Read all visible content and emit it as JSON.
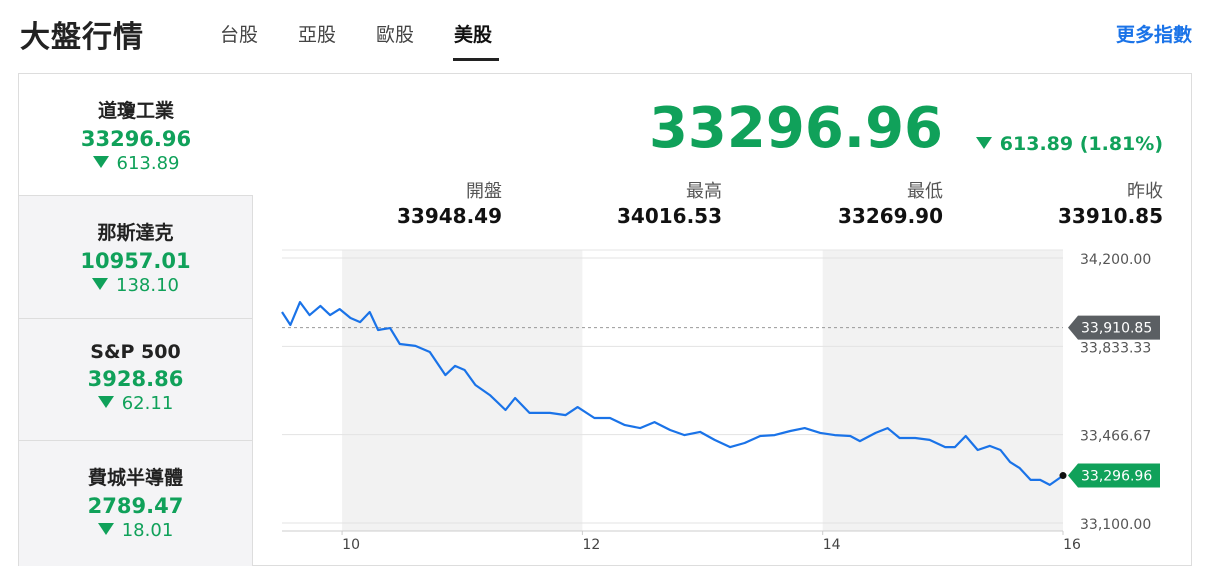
{
  "header": {
    "title": "大盤行情",
    "tabs": [
      "台股",
      "亞股",
      "歐股",
      "美股"
    ],
    "active_tab": 3,
    "more": "更多指數"
  },
  "sidebar": [
    {
      "name": "道瓊工業",
      "price": "33296.96",
      "change": "613.89"
    },
    {
      "name": "那斯達克",
      "price": "10957.01",
      "change": "138.10"
    },
    {
      "name": "S&P 500",
      "price": "3928.86",
      "change": "62.11"
    },
    {
      "name": "費城半導體",
      "price": "2789.47",
      "change": "18.01"
    }
  ],
  "quote": {
    "price": "33296.96",
    "change": "613.89 (1.81%)",
    "stats": [
      {
        "label": "開盤",
        "value": "33948.49"
      },
      {
        "label": "最高",
        "value": "34016.53"
      },
      {
        "label": "最低",
        "value": "33269.90"
      },
      {
        "label": "昨收",
        "value": "33910.85"
      }
    ]
  },
  "chart_data": {
    "type": "line",
    "color": "#1a73e8",
    "x": [
      9.5,
      9.57,
      9.65,
      9.73,
      9.82,
      9.9,
      9.98,
      10.07,
      10.15,
      10.23,
      10.3,
      10.4,
      10.48,
      10.61,
      10.73,
      10.86,
      10.94,
      11.02,
      11.11,
      11.23,
      11.36,
      11.44,
      11.56,
      11.73,
      11.86,
      11.96,
      12.1,
      12.23,
      12.35,
      12.48,
      12.6,
      12.73,
      12.85,
      12.98,
      13.1,
      13.23,
      13.35,
      13.48,
      13.6,
      13.73,
      13.85,
      13.98,
      14.1,
      14.23,
      14.31,
      14.44,
      14.54,
      14.64,
      14.77,
      14.89,
      15.02,
      15.1,
      15.19,
      15.29,
      15.39,
      15.48,
      15.56,
      15.64,
      15.73,
      15.81,
      15.89,
      16.0
    ],
    "values": [
      33976,
      33922,
      34017,
      33963,
      34001,
      33963,
      33988,
      33951,
      33934,
      33976,
      33901,
      33909,
      33843,
      33835,
      33810,
      33714,
      33752,
      33735,
      33673,
      33631,
      33569,
      33619,
      33557,
      33557,
      33548,
      33581,
      33536,
      33536,
      33507,
      33494,
      33519,
      33486,
      33465,
      33478,
      33445,
      33415,
      33432,
      33461,
      33465,
      33482,
      33494,
      33474,
      33465,
      33461,
      33440,
      33474,
      33494,
      33453,
      33453,
      33445,
      33415,
      33415,
      33461,
      33403,
      33420,
      33403,
      33353,
      33328,
      33279,
      33279,
      33258,
      33296.96
    ],
    "last_value_label": "33,296.96",
    "reference_line": {
      "value": 33910.85,
      "label": "33,910.85"
    },
    "xlim": [
      9.5,
      16
    ],
    "xticks": [
      10,
      12,
      14,
      16
    ],
    "ylim": [
      33100,
      34200
    ],
    "yticks": [
      {
        "value": 34200,
        "label": "34,200.00"
      },
      {
        "value": 33833.33,
        "label": "33,833.33"
      },
      {
        "value": 33466.67,
        "label": "33,466.67"
      },
      {
        "value": 33100,
        "label": "33,100.00"
      }
    ],
    "grid": true,
    "shaded_bands": [
      [
        10,
        12
      ],
      [
        14,
        16
      ]
    ]
  }
}
